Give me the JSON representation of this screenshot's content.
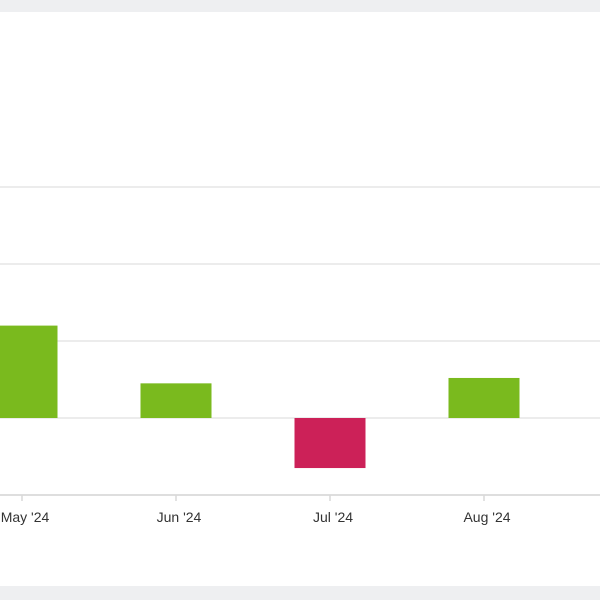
{
  "chart_data": {
    "type": "bar",
    "categories": [
      "May '24",
      "Jun '24",
      "Jul '24",
      "Aug '24"
    ],
    "values": [
      12,
      4.5,
      -6.5,
      5.2
    ],
    "ylim": [
      -10,
      30
    ],
    "grid": true,
    "colors": {
      "positive": "#7aba1e",
      "negative": "#cc2158",
      "grid": "#e6e6e6",
      "axis": "#d8d8d8"
    }
  }
}
